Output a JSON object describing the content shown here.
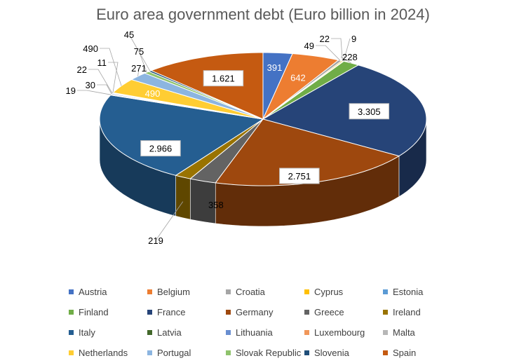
{
  "chart_data": {
    "type": "pie",
    "title": "Euro area government debt (Euro billion in 2024)",
    "value_unit": "Euro billion",
    "year": "2024",
    "legend_position": "bottom",
    "three_d": true,
    "slices": [
      {
        "name": "Austria",
        "value": 391,
        "label": "391",
        "color": "#4472C4"
      },
      {
        "name": "Belgium",
        "value": 642,
        "label": "642",
        "color": "#ED7D31"
      },
      {
        "name": "Croatia",
        "value": 49,
        "label": "49",
        "color": "#A5A5A5"
      },
      {
        "name": "Cyprus",
        "value": 22,
        "label": "22",
        "color": "#FFC000"
      },
      {
        "name": "Estonia",
        "value": 9,
        "label": "9",
        "color": "#5B9BD5"
      },
      {
        "name": "Finland",
        "value": 228,
        "label": "228",
        "color": "#70AD47"
      },
      {
        "name": "France",
        "value": 3305,
        "label": "3.305",
        "color": "#264478"
      },
      {
        "name": "Germany",
        "value": 2751,
        "label": "2.751",
        "color": "#9E480E"
      },
      {
        "name": "Greece",
        "value": 358,
        "label": "358",
        "color": "#636363"
      },
      {
        "name": "Ireland",
        "value": 219,
        "label": "219",
        "color": "#997300"
      },
      {
        "name": "Italy",
        "value": 2966,
        "label": "2.966",
        "color": "#255E91"
      },
      {
        "name": "Latvia",
        "value": 19,
        "label": "19",
        "color": "#43682B"
      },
      {
        "name": "Lithuania",
        "value": 30,
        "label": "30",
        "color": "#698ED0"
      },
      {
        "name": "Luxembourg",
        "value": 22,
        "label": "22",
        "color": "#F1975A"
      },
      {
        "name": "Malta",
        "value": 11,
        "label": "11",
        "color": "#B7B7B7"
      },
      {
        "name": "Netherlands",
        "value": 490,
        "label": "490",
        "color": "#FFCD33"
      },
      {
        "name": "Portugal",
        "value": 271,
        "label": "271",
        "color": "#8CB5E0"
      },
      {
        "name": "Slovak Republic",
        "value": 75,
        "label": "75",
        "color": "#8FC36C"
      },
      {
        "name": "Slovenia",
        "value": 45,
        "label": "45",
        "color": "#1F4E79"
      },
      {
        "name": "Spain",
        "value": 1621,
        "label": "1.621",
        "color": "#C55A11"
      }
    ]
  }
}
